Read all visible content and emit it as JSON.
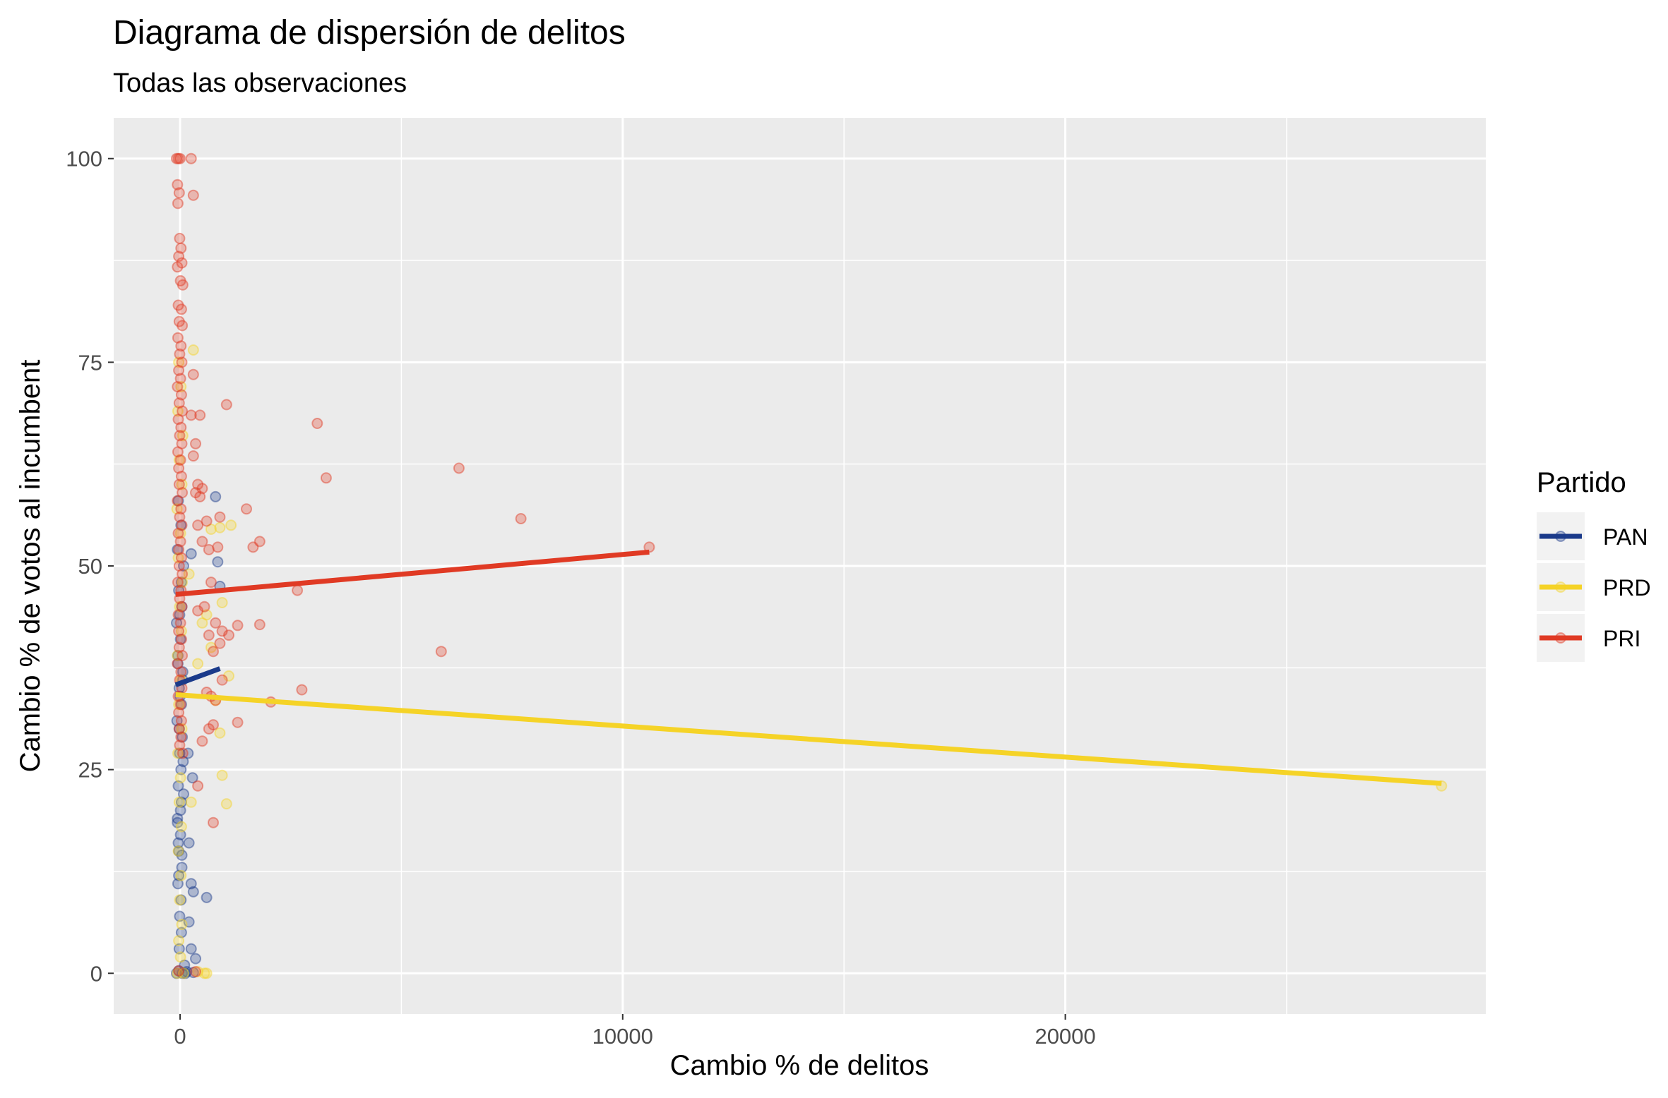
{
  "chart_data": {
    "type": "scatter",
    "title": "Diagrama de dispersión de delitos",
    "subtitle": "Todas las observaciones",
    "xlabel": "Cambio % de delitos",
    "ylabel": "Cambio % de votos al incumbent",
    "xlim": [
      -1500,
      29500
    ],
    "ylim": [
      -5,
      105
    ],
    "x_ticks": [
      0,
      10000,
      20000
    ],
    "x_tick_labels": [
      "0",
      "10000",
      "20000"
    ],
    "x_minor_ticks": [
      5000,
      15000,
      25000
    ],
    "y_ticks": [
      0,
      25,
      50,
      75,
      100
    ],
    "y_tick_labels": [
      "0",
      "25",
      "50",
      "75",
      "100"
    ],
    "y_minor_ticks": [
      12.5,
      37.5,
      62.5,
      87.5
    ],
    "grid": true,
    "legend": {
      "title": "Partido",
      "position": "right"
    },
    "series": [
      {
        "name": "PAN",
        "color": "#1a3a8a",
        "fit": {
          "x": [
            -100,
            900
          ],
          "y": [
            35.4,
            37.4
          ]
        },
        "points": [
          [
            -40,
            58
          ],
          [
            20,
            55
          ],
          [
            -60,
            52
          ],
          [
            80,
            50
          ],
          [
            -30,
            47
          ],
          [
            40,
            45
          ],
          [
            -80,
            43
          ],
          [
            10,
            41
          ],
          [
            -50,
            39
          ],
          [
            60,
            37
          ],
          [
            -20,
            35
          ],
          [
            30,
            33
          ],
          [
            -70,
            31
          ],
          [
            50,
            29
          ],
          [
            -10,
            27
          ],
          [
            20,
            25
          ],
          [
            -40,
            23
          ],
          [
            30,
            21
          ],
          [
            -60,
            19
          ],
          [
            10,
            17
          ],
          [
            -30,
            15
          ],
          [
            40,
            13
          ],
          [
            -50,
            11
          ],
          [
            20,
            9
          ],
          [
            -10,
            7
          ],
          [
            30,
            5
          ],
          [
            -20,
            3
          ],
          [
            100,
            1
          ],
          [
            -80,
            0
          ],
          [
            50,
            0
          ],
          [
            120,
            0
          ],
          [
            -30,
            0.3
          ],
          [
            800,
            58.5
          ],
          [
            850,
            50.5
          ],
          [
            900,
            47.5
          ],
          [
            250,
            51.5
          ],
          [
            180,
            27
          ],
          [
            280,
            24
          ],
          [
            200,
            16
          ],
          [
            250,
            11
          ],
          [
            300,
            10
          ],
          [
            600,
            9.3
          ],
          [
            200,
            6.3
          ],
          [
            250,
            3
          ],
          [
            350,
            1.8
          ],
          [
            150,
            0.2
          ],
          [
            300,
            0.1
          ],
          [
            -50,
            38
          ],
          [
            0,
            34
          ],
          [
            60,
            36
          ],
          [
            -20,
            30
          ],
          [
            80,
            22
          ],
          [
            -60,
            18.5
          ],
          [
            40,
            14.5
          ],
          [
            -30,
            12
          ],
          [
            10,
            20
          ],
          [
            -40,
            16
          ],
          [
            70,
            26
          ],
          [
            -10,
            44
          ],
          [
            30,
            48
          ]
        ]
      },
      {
        "name": "PRD",
        "color": "#f5d327",
        "fit": {
          "x": [
            -100,
            28500
          ],
          "y": [
            34.2,
            23.3
          ]
        },
        "points": [
          [
            -30,
            75
          ],
          [
            20,
            72
          ],
          [
            -50,
            69
          ],
          [
            60,
            66
          ],
          [
            -20,
            63
          ],
          [
            40,
            60
          ],
          [
            -70,
            57
          ],
          [
            10,
            54
          ],
          [
            -40,
            51
          ],
          [
            50,
            48
          ],
          [
            -10,
            45
          ],
          [
            30,
            42
          ],
          [
            -60,
            39
          ],
          [
            20,
            36
          ],
          [
            -30,
            33
          ],
          [
            40,
            30
          ],
          [
            -50,
            27
          ],
          [
            10,
            24
          ],
          [
            -20,
            21
          ],
          [
            30,
            18
          ],
          [
            -40,
            15
          ],
          [
            20,
            12
          ],
          [
            -10,
            9
          ],
          [
            40,
            6
          ],
          [
            -30,
            4
          ],
          [
            10,
            2
          ],
          [
            -60,
            0
          ],
          [
            80,
            0
          ],
          [
            550,
            0
          ],
          [
            600,
            0
          ],
          [
            400,
            0.2
          ],
          [
            900,
            54.7
          ],
          [
            1150,
            55
          ],
          [
            700,
            54.5
          ],
          [
            950,
            45.5
          ],
          [
            1100,
            36.5
          ],
          [
            900,
            29.5
          ],
          [
            950,
            24.3
          ],
          [
            1050,
            20.8
          ],
          [
            250,
            21
          ],
          [
            300,
            76.5
          ],
          [
            500,
            43
          ],
          [
            600,
            44
          ],
          [
            200,
            49
          ],
          [
            400,
            38
          ],
          [
            700,
            40
          ],
          [
            800,
            33.5
          ],
          [
            28500,
            23
          ]
        ]
      },
      {
        "name": "PRI",
        "color": "#e03a24",
        "fit": {
          "x": [
            -100,
            10600
          ],
          "y": [
            46.5,
            51.7
          ]
        },
        "points": [
          [
            -80,
            100
          ],
          [
            -40,
            100
          ],
          [
            0,
            100
          ],
          [
            250,
            100
          ],
          [
            -60,
            96.8
          ],
          [
            -20,
            95.8
          ],
          [
            -50,
            94.5
          ],
          [
            300,
            95.5
          ],
          [
            -10,
            90.2
          ],
          [
            20,
            89
          ],
          [
            -30,
            88
          ],
          [
            40,
            87.2
          ],
          [
            -60,
            86.7
          ],
          [
            10,
            85
          ],
          [
            60,
            84.5
          ],
          [
            -40,
            82
          ],
          [
            30,
            81.5
          ],
          [
            -20,
            80
          ],
          [
            50,
            79.5
          ],
          [
            -50,
            78
          ],
          [
            20,
            77
          ],
          [
            -10,
            76
          ],
          [
            40,
            75
          ],
          [
            -30,
            74
          ],
          [
            10,
            73
          ],
          [
            -60,
            72
          ],
          [
            30,
            71
          ],
          [
            -20,
            70
          ],
          [
            50,
            69
          ],
          [
            -40,
            68
          ],
          [
            20,
            67
          ],
          [
            -10,
            66
          ],
          [
            40,
            65
          ],
          [
            -50,
            64
          ],
          [
            10,
            63
          ],
          [
            -30,
            62
          ],
          [
            30,
            61
          ],
          [
            -20,
            60
          ],
          [
            50,
            59
          ],
          [
            -60,
            58
          ],
          [
            20,
            57
          ],
          [
            -10,
            56
          ],
          [
            40,
            55
          ],
          [
            -40,
            54
          ],
          [
            10,
            53
          ],
          [
            -30,
            52
          ],
          [
            30,
            51
          ],
          [
            -20,
            50
          ],
          [
            50,
            49
          ],
          [
            -50,
            48
          ],
          [
            20,
            47
          ],
          [
            -10,
            46
          ],
          [
            40,
            45
          ],
          [
            -40,
            44
          ],
          [
            10,
            43
          ],
          [
            -30,
            42
          ],
          [
            30,
            41
          ],
          [
            -20,
            40
          ],
          [
            50,
            39
          ],
          [
            -60,
            38
          ],
          [
            20,
            37
          ],
          [
            -10,
            36
          ],
          [
            40,
            35
          ],
          [
            -40,
            34
          ],
          [
            10,
            33
          ],
          [
            -30,
            32
          ],
          [
            30,
            31
          ],
          [
            -20,
            30
          ],
          [
            20,
            29
          ],
          [
            -10,
            28
          ],
          [
            60,
            27
          ],
          [
            300,
            73.5
          ],
          [
            250,
            68.5
          ],
          [
            450,
            68.5
          ],
          [
            350,
            65
          ],
          [
            300,
            63.5
          ],
          [
            400,
            60
          ],
          [
            500,
            59.5
          ],
          [
            350,
            59
          ],
          [
            450,
            58.5
          ],
          [
            600,
            55.5
          ],
          [
            400,
            55
          ],
          [
            500,
            53
          ],
          [
            650,
            52
          ],
          [
            850,
            52.3
          ],
          [
            700,
            48
          ],
          [
            550,
            45
          ],
          [
            400,
            44.5
          ],
          [
            800,
            43
          ],
          [
            950,
            42
          ],
          [
            650,
            41.5
          ],
          [
            900,
            40.5
          ],
          [
            750,
            39.5
          ],
          [
            950,
            36
          ],
          [
            600,
            34.5
          ],
          [
            700,
            34
          ],
          [
            800,
            33.5
          ],
          [
            650,
            30
          ],
          [
            750,
            30.5
          ],
          [
            500,
            28.5
          ],
          [
            400,
            23
          ],
          [
            1050,
            69.8
          ],
          [
            3100,
            67.5
          ],
          [
            3300,
            60.8
          ],
          [
            6300,
            62
          ],
          [
            7700,
            55.8
          ],
          [
            10600,
            52.3
          ],
          [
            1500,
            57
          ],
          [
            1650,
            52.3
          ],
          [
            1800,
            53
          ],
          [
            1800,
            42.8
          ],
          [
            1300,
            42.7
          ],
          [
            1300,
            30.8
          ],
          [
            2650,
            47
          ],
          [
            2050,
            33.3
          ],
          [
            2750,
            34.8
          ],
          [
            5900,
            39.5
          ],
          [
            900,
            56
          ],
          [
            1100,
            41.5
          ],
          [
            750,
            18.5
          ],
          [
            350,
            0.2
          ],
          [
            -30,
            0.3
          ]
        ]
      }
    ]
  }
}
